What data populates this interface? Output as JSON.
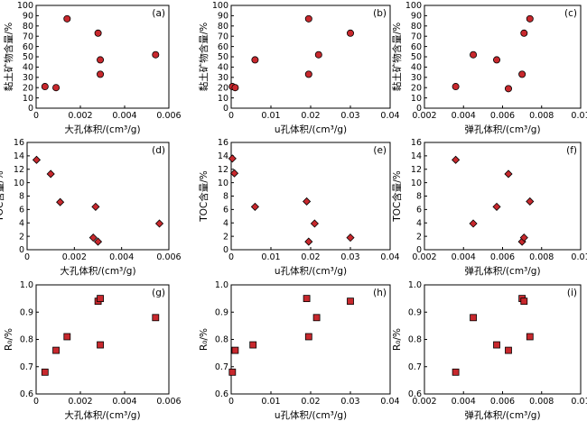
{
  "figure": {
    "panel_count": 9
  },
  "chart_data": [
    {
      "type": "scatter",
      "label": "(a)",
      "marker": "circle",
      "xlabel": "大孔体积/(cm³/g)",
      "ylabel": "黏土矿物含量/%",
      "xlim": [
        0,
        0.006
      ],
      "ylim": [
        0,
        100
      ],
      "xticks": [
        0,
        0.002,
        0.004,
        0.006
      ],
      "xticklabels": [
        "0",
        "0.002",
        "0.004",
        "0.006"
      ],
      "yticks": [
        0,
        10,
        20,
        30,
        40,
        50,
        60,
        70,
        80,
        90,
        100
      ],
      "yticklabels": [
        "0",
        "10",
        "20",
        "30",
        "40",
        "50",
        "60",
        "70",
        "80",
        "90",
        "100"
      ],
      "points": [
        [
          0.0004,
          21
        ],
        [
          0.0009,
          20
        ],
        [
          0.0014,
          87
        ],
        [
          0.0028,
          73
        ],
        [
          0.0029,
          47
        ],
        [
          0.0029,
          33
        ],
        [
          0.0054,
          52
        ]
      ],
      "color": "#c8282d"
    },
    {
      "type": "scatter",
      "label": "(b)",
      "marker": "circle",
      "xlabel": "u孔体积/(cm³/g)",
      "ylabel": "黏土矿物含量/%",
      "xlim": [
        0,
        0.04
      ],
      "ylim": [
        0,
        100
      ],
      "xticks": [
        0,
        0.01,
        0.02,
        0.03,
        0.04
      ],
      "xticklabels": [
        "0",
        "0.01",
        "0.02",
        "0.03",
        "0.04"
      ],
      "yticks": [
        0,
        10,
        20,
        30,
        40,
        50,
        60,
        70,
        80,
        90,
        100
      ],
      "yticklabels": [
        "0",
        "10",
        "20",
        "30",
        "40",
        "50",
        "60",
        "70",
        "80",
        "90",
        "100"
      ],
      "points": [
        [
          0.0003,
          21
        ],
        [
          0.001,
          20
        ],
        [
          0.006,
          47
        ],
        [
          0.0195,
          87
        ],
        [
          0.0195,
          33
        ],
        [
          0.022,
          52
        ],
        [
          0.03,
          73
        ]
      ],
      "color": "#c8282d"
    },
    {
      "type": "scatter",
      "label": "(c)",
      "marker": "circle",
      "xlabel": "弹孔体积/(cm³/g)",
      "ylabel": "黏土矿物含量/%",
      "xlim": [
        0.002,
        0.01
      ],
      "ylim": [
        0,
        100
      ],
      "xticks": [
        0.002,
        0.004,
        0.006,
        0.008,
        0.01
      ],
      "xticklabels": [
        "0.002",
        "0.004",
        "0.006",
        "0.008",
        "0.01"
      ],
      "yticks": [
        0,
        10,
        20,
        30,
        40,
        50,
        60,
        70,
        80,
        90,
        100
      ],
      "yticklabels": [
        "0",
        "10",
        "20",
        "30",
        "40",
        "50",
        "60",
        "70",
        "80",
        "90",
        "100"
      ],
      "points": [
        [
          0.0036,
          21
        ],
        [
          0.0045,
          52
        ],
        [
          0.0057,
          47
        ],
        [
          0.0063,
          19
        ],
        [
          0.007,
          33
        ],
        [
          0.0071,
          73
        ],
        [
          0.0074,
          87
        ]
      ],
      "color": "#c8282d"
    },
    {
      "type": "scatter",
      "label": "(d)",
      "marker": "diamond",
      "xlabel": "大孔体积/(cm³/g)",
      "ylabel": "TOC含量/%",
      "xlim": [
        0,
        0.006
      ],
      "ylim": [
        0,
        16
      ],
      "xticks": [
        0,
        0.002,
        0.004,
        0.006
      ],
      "xticklabels": [
        "0",
        "0.002",
        "0.004",
        "0.006"
      ],
      "yticks": [
        0,
        2,
        4,
        6,
        8,
        10,
        12,
        14,
        16
      ],
      "yticklabels": [
        "0",
        "2",
        "4",
        "6",
        "8",
        "10",
        "12",
        "14",
        "16"
      ],
      "points": [
        [
          0.0004,
          13.4
        ],
        [
          0.001,
          11.3
        ],
        [
          0.0014,
          7.1
        ],
        [
          0.0028,
          1.8
        ],
        [
          0.0029,
          6.4
        ],
        [
          0.003,
          1.2
        ],
        [
          0.0056,
          3.9
        ]
      ],
      "color": "#c8282d"
    },
    {
      "type": "scatter",
      "label": "(e)",
      "marker": "diamond",
      "xlabel": "u孔体积/(cm³/g)",
      "ylabel": "TOC含量/%",
      "xlim": [
        0,
        0.04
      ],
      "ylim": [
        0,
        16
      ],
      "xticks": [
        0,
        0.01,
        0.02,
        0.03,
        0.04
      ],
      "xticklabels": [
        "0",
        "0.01",
        "0.02",
        "0.03",
        "0.04"
      ],
      "yticks": [
        0,
        2,
        4,
        6,
        8,
        10,
        12,
        14,
        16
      ],
      "yticklabels": [
        "0",
        "2",
        "4",
        "6",
        "8",
        "10",
        "12",
        "14",
        "16"
      ],
      "points": [
        [
          0.0003,
          13.6
        ],
        [
          0.0008,
          11.4
        ],
        [
          0.006,
          6.4
        ],
        [
          0.019,
          7.2
        ],
        [
          0.0195,
          1.2
        ],
        [
          0.021,
          3.9
        ],
        [
          0.03,
          1.8
        ]
      ],
      "color": "#c8282d"
    },
    {
      "type": "scatter",
      "label": "(f)",
      "marker": "diamond",
      "xlabel": "弹孔体积/(cm³/g)",
      "ylabel": "TOC含量/%",
      "xlim": [
        0.002,
        0.01
      ],
      "ylim": [
        0,
        16
      ],
      "xticks": [
        0.002,
        0.004,
        0.006,
        0.008,
        0.01
      ],
      "xticklabels": [
        "0.002",
        "0.004",
        "0.006",
        "0.008",
        "0.01"
      ],
      "yticks": [
        0,
        2,
        4,
        6,
        8,
        10,
        12,
        14,
        16
      ],
      "yticklabels": [
        "0",
        "2",
        "4",
        "6",
        "8",
        "10",
        "12",
        "14",
        "16"
      ],
      "points": [
        [
          0.0036,
          13.4
        ],
        [
          0.0045,
          3.9
        ],
        [
          0.0057,
          6.4
        ],
        [
          0.0063,
          11.3
        ],
        [
          0.007,
          1.2
        ],
        [
          0.0071,
          1.8
        ],
        [
          0.0074,
          7.2
        ]
      ],
      "color": "#c8282d"
    },
    {
      "type": "scatter",
      "label": "(g)",
      "marker": "square",
      "xlabel": "大孔体积/(cm³/g)",
      "ylabel": "R₀/%",
      "xlim": [
        0,
        0.006
      ],
      "ylim": [
        0.6,
        1.0
      ],
      "xticks": [
        0,
        0.002,
        0.004,
        0.006
      ],
      "xticklabels": [
        "0",
        "0.002",
        "0.004",
        "0.006"
      ],
      "yticks": [
        0.6,
        0.7,
        0.8,
        0.9,
        1.0
      ],
      "yticklabels": [
        "0.6",
        "0.7",
        "0.8",
        "0.9",
        "1.0"
      ],
      "points": [
        [
          0.0004,
          0.68
        ],
        [
          0.0009,
          0.76
        ],
        [
          0.0014,
          0.81
        ],
        [
          0.0028,
          0.94
        ],
        [
          0.0029,
          0.95
        ],
        [
          0.0029,
          0.78
        ],
        [
          0.0054,
          0.88
        ]
      ],
      "color": "#c8282d"
    },
    {
      "type": "scatter",
      "label": "(h)",
      "marker": "square",
      "xlabel": "u孔体积/(cm³/g)",
      "ylabel": "R₀/%",
      "xlim": [
        0,
        0.04
      ],
      "ylim": [
        0.6,
        1.0
      ],
      "xticks": [
        0,
        0.01,
        0.02,
        0.03,
        0.04
      ],
      "xticklabels": [
        "0",
        "0.01",
        "0.02",
        "0.03",
        "0.04"
      ],
      "yticks": [
        0.6,
        0.7,
        0.8,
        0.9,
        1.0
      ],
      "yticklabels": [
        "0.6",
        "0.7",
        "0.8",
        "0.9",
        "1.0"
      ],
      "points": [
        [
          0.0003,
          0.68
        ],
        [
          0.001,
          0.76
        ],
        [
          0.0055,
          0.78
        ],
        [
          0.019,
          0.95
        ],
        [
          0.0195,
          0.81
        ],
        [
          0.0215,
          0.88
        ],
        [
          0.03,
          0.94
        ]
      ],
      "color": "#c8282d"
    },
    {
      "type": "scatter",
      "label": "(i)",
      "marker": "square",
      "xlabel": "弹孔体积/(cm³/g)",
      "ylabel": "R₀/%",
      "xlim": [
        0.002,
        0.01
      ],
      "ylim": [
        0.6,
        1.0
      ],
      "xticks": [
        0.002,
        0.004,
        0.006,
        0.008,
        0.01
      ],
      "xticklabels": [
        "0.002",
        "0.004",
        "0.006",
        "0.008",
        "0.01"
      ],
      "yticks": [
        0.6,
        0.7,
        0.8,
        0.9,
        1.0
      ],
      "yticklabels": [
        "0.6",
        "0.7",
        "0.8",
        "0.9",
        "1.0"
      ],
      "points": [
        [
          0.0036,
          0.68
        ],
        [
          0.0045,
          0.88
        ],
        [
          0.0057,
          0.78
        ],
        [
          0.0063,
          0.76
        ],
        [
          0.007,
          0.95
        ],
        [
          0.0071,
          0.94
        ],
        [
          0.0074,
          0.81
        ]
      ],
      "color": "#c8282d"
    }
  ]
}
